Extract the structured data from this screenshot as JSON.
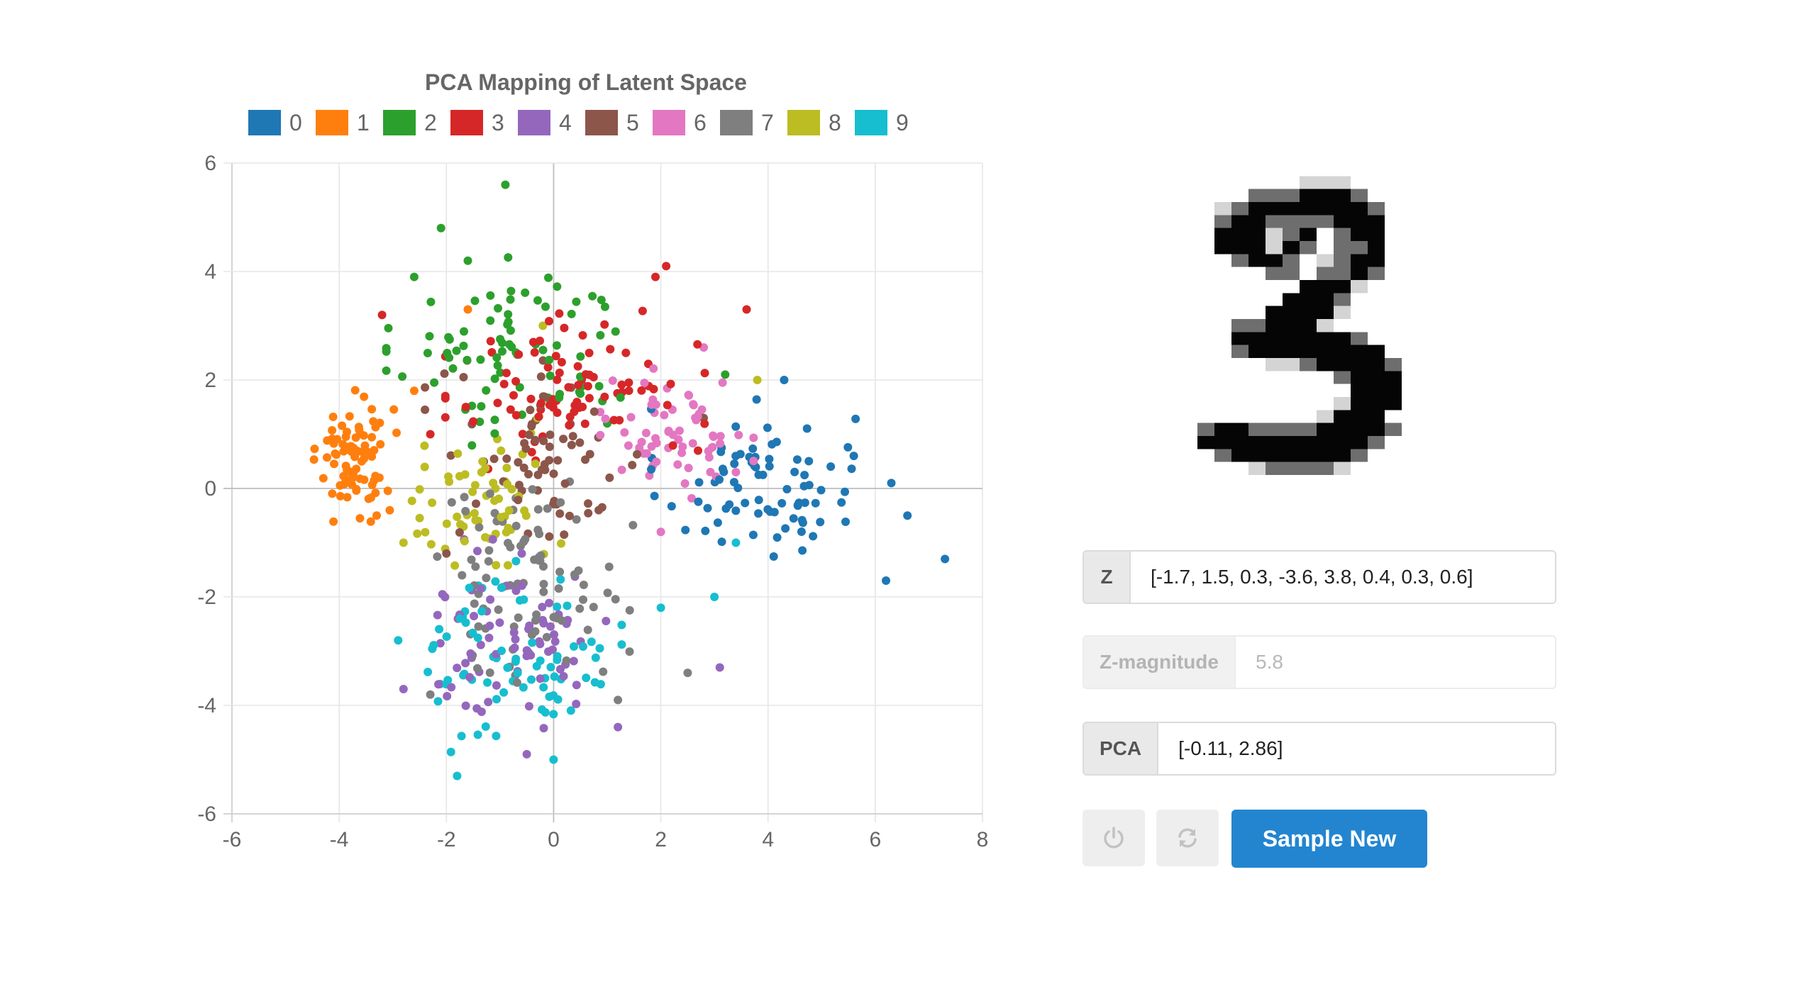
{
  "chart_data": {
    "type": "scatter",
    "title": "PCA Mapping of Latent Space",
    "xlim": [
      -6,
      8
    ],
    "ylim": [
      -6,
      6
    ],
    "x_ticks": [
      "-6",
      "-4",
      "-2",
      "0",
      "2",
      "4",
      "6",
      "8"
    ],
    "y_ticks": [
      "6",
      "4",
      "2",
      "0",
      "-2",
      "-4",
      "-6"
    ],
    "legend_position": "top",
    "grid": true,
    "series": [
      {
        "name": "0",
        "color": "#1f77b4",
        "center": [
          3.8,
          0.1
        ],
        "spread": [
          0.9,
          0.7
        ],
        "count": 80,
        "extra": [
          [
            7.3,
            -1.3
          ],
          [
            6.2,
            -1.7
          ],
          [
            6.6,
            -0.5
          ],
          [
            6.3,
            0.1
          ],
          [
            4.3,
            2.0
          ],
          [
            5.6,
            0.6
          ]
        ]
      },
      {
        "name": "1",
        "color": "#ff7f0e",
        "center": [
          -3.7,
          0.6
        ],
        "spread": [
          0.35,
          0.55
        ],
        "count": 85,
        "extra": [
          [
            -1.6,
            3.3
          ],
          [
            -2.6,
            1.8
          ],
          [
            -3.3,
            -0.5
          ]
        ]
      },
      {
        "name": "2",
        "color": "#2ca02c",
        "center": [
          -0.7,
          2.5
        ],
        "spread": [
          1.1,
          0.8
        ],
        "count": 80,
        "extra": [
          [
            -0.9,
            5.6
          ],
          [
            -2.1,
            4.8
          ],
          [
            -1.6,
            4.2
          ],
          [
            -2.6,
            3.9
          ],
          [
            1.0,
            1.2
          ],
          [
            3.2,
            2.1
          ]
        ]
      },
      {
        "name": "3",
        "color": "#d62728",
        "center": [
          0.4,
          1.9
        ],
        "spread": [
          1.1,
          0.7
        ],
        "count": 85,
        "extra": [
          [
            -3.2,
            3.2
          ],
          [
            2.1,
            4.1
          ],
          [
            3.6,
            3.3
          ],
          [
            -2.3,
            1.0
          ],
          [
            1.9,
            3.9
          ]
        ]
      },
      {
        "name": "4",
        "color": "#9467bd",
        "center": [
          -0.7,
          -2.7
        ],
        "spread": [
          0.9,
          0.8
        ],
        "count": 75,
        "extra": [
          [
            -2.8,
            -3.7
          ],
          [
            1.2,
            -4.4
          ],
          [
            3.1,
            -3.3
          ],
          [
            -0.5,
            -4.9
          ]
        ]
      },
      {
        "name": "5",
        "color": "#8c564b",
        "center": [
          -0.2,
          0.6
        ],
        "spread": [
          1.0,
          0.8
        ],
        "count": 70,
        "extra": [
          [
            2.8,
            1.3
          ],
          [
            -2.0,
            -1.2
          ]
        ]
      },
      {
        "name": "6",
        "color": "#e377c2",
        "center": [
          2.3,
          1.0
        ],
        "spread": [
          0.65,
          0.55
        ],
        "count": 65,
        "extra": [
          [
            2.8,
            2.6
          ],
          [
            3.4,
            0.3
          ],
          [
            2.0,
            -0.8
          ]
        ]
      },
      {
        "name": "7",
        "color": "#7f7f7f",
        "center": [
          -0.5,
          -1.6
        ],
        "spread": [
          0.9,
          0.9
        ],
        "count": 85,
        "extra": [
          [
            1.2,
            -3.9
          ],
          [
            -2.3,
            -3.8
          ],
          [
            2.5,
            -3.4
          ]
        ]
      },
      {
        "name": "8",
        "color": "#bcbd22",
        "center": [
          -1.4,
          -0.3
        ],
        "spread": [
          0.7,
          0.6
        ],
        "count": 60,
        "extra": [
          [
            3.8,
            2.0
          ],
          [
            -0.2,
            3.0
          ],
          [
            -2.8,
            -1.0
          ],
          [
            -0.3,
            1.3
          ]
        ]
      },
      {
        "name": "9",
        "color": "#17becf",
        "center": [
          -0.6,
          -3.1
        ],
        "spread": [
          0.85,
          0.8
        ],
        "count": 75,
        "extra": [
          [
            -1.8,
            -5.3
          ],
          [
            2.0,
            -2.2
          ],
          [
            3.0,
            -2.0
          ],
          [
            0.0,
            -5.0
          ],
          [
            -2.9,
            -2.8
          ],
          [
            3.4,
            -1.0
          ]
        ]
      }
    ]
  },
  "digit": {
    "label": "3",
    "rows": [
      "000000000000000",
      "000000001110000",
      "000002223332000",
      "000123333333200",
      "000233222233300",
      "000333123023300",
      "000333132022300",
      "000023320123300",
      "000000220223200",
      "000000003331000",
      "000000033320000",
      "000000333310000",
      "000022333100000",
      "000033333332000",
      "000023333333300",
      "000000112333320",
      "000000000023330",
      "000000000003330",
      "000000000013330",
      "000000000133300",
      "002332222333320",
      "003333333333200",
      "000233333332000",
      "000001222210000"
    ]
  },
  "fields": {
    "z": {
      "label": "Z",
      "value": "[-1.7, 1.5, 0.3, -3.6, 3.8, 0.4, 0.3, 0.6]"
    },
    "z_magnitude": {
      "label": "Z-magnitude",
      "value": "5.8"
    },
    "pca": {
      "label": "PCA",
      "value": "[-0.11, 2.86]"
    }
  },
  "buttons": {
    "power_icon": "power-icon",
    "refresh_icon": "refresh-icon",
    "sample_new_label": "Sample New"
  }
}
